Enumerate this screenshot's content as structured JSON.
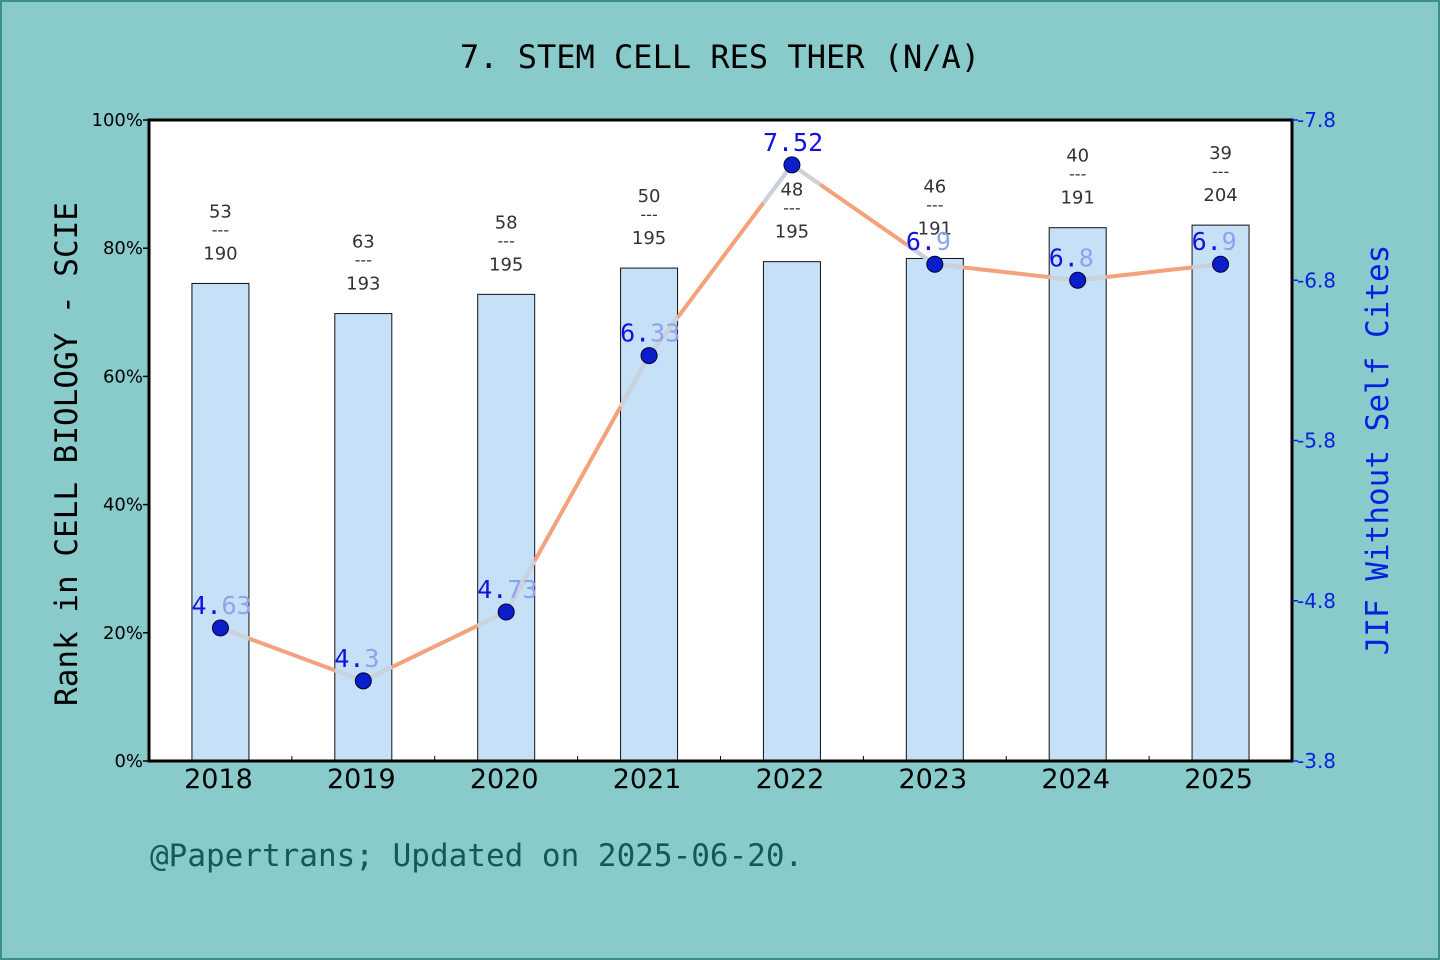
{
  "chart_data": {
    "type": "bar",
    "title": "7. STEM CELL RES THER (N/A)",
    "ylabel": "Rank in CELL BIOLOGY - SCIE",
    "y2label": "JIF Without Self Cites",
    "categories": [
      "2018",
      "2019",
      "2020",
      "2021",
      "2022",
      "2023",
      "2024",
      "2025"
    ],
    "ylim": [
      0,
      100
    ],
    "y_ticks": [
      "0%",
      "20%",
      "40%",
      "60%",
      "80%",
      "100%"
    ],
    "y2lim": [
      3.8,
      7.8
    ],
    "y2_ticks": [
      "3.8",
      "4.8",
      "5.8",
      "6.8",
      "7.8"
    ],
    "legend": "none",
    "grid": false,
    "bars": {
      "values": [
        74.5,
        69.8,
        72.8,
        76.9,
        77.9,
        78.4,
        83.2,
        83.6
      ],
      "rank_labels": [
        {
          "rank": "53",
          "sep": "---",
          "total": "190"
        },
        {
          "rank": "63",
          "sep": "---",
          "total": "193"
        },
        {
          "rank": "58",
          "sep": "---",
          "total": "195"
        },
        {
          "rank": "50",
          "sep": "---",
          "total": "195"
        },
        {
          "rank": "48",
          "sep": "---",
          "total": "195"
        },
        {
          "rank": "46",
          "sep": "---",
          "total": "191"
        },
        {
          "rank": "40",
          "sep": "---",
          "total": "191"
        },
        {
          "rank": "39",
          "sep": "---",
          "total": "204"
        }
      ]
    },
    "line": {
      "values": [
        4.63,
        4.3,
        4.73,
        6.33,
        7.52,
        6.9,
        6.8,
        6.9
      ],
      "labels": [
        "4.63",
        "4.3",
        "4.73",
        "6.33",
        "7.52",
        "6.9",
        "6.8",
        "6.9"
      ]
    },
    "footer": "@Papertrans; Updated on 2025-06-20."
  },
  "colors": {
    "background": "#88cbca",
    "plot_bg": "#ffffff",
    "bar_fill": "#c5e0f7",
    "bar_stroke": "#111111",
    "line": "#f4a27c",
    "line_highlight": "#c9d2dd",
    "point": "#0a1fc9",
    "point_label": "#1010e0",
    "point_label_faded": "#8fa2ea",
    "rank_text": "#333333",
    "axis": "#000000",
    "right_axis": "#0a1fe0",
    "footer": "#155a52",
    "title": "#000000"
  }
}
